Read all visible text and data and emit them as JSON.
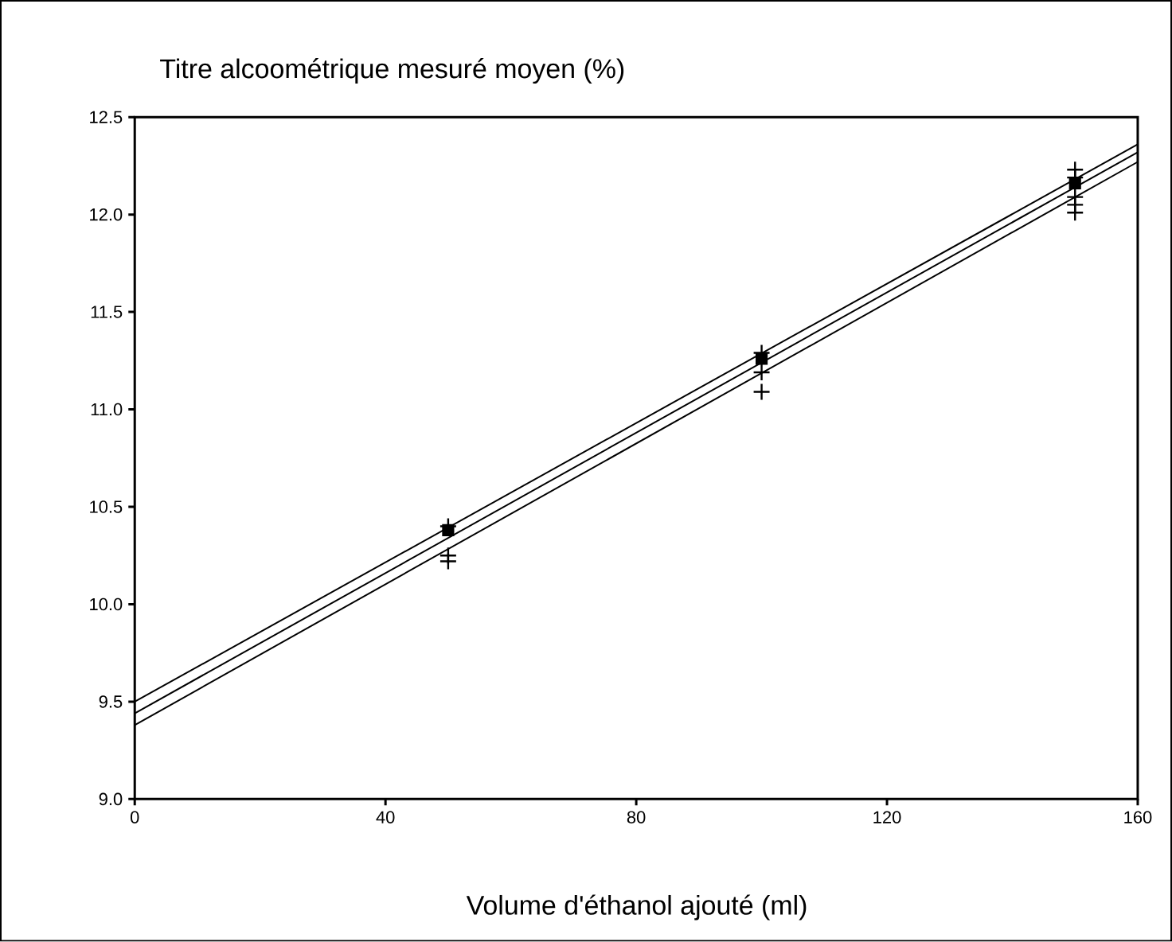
{
  "chart_data": {
    "type": "line",
    "ylabel": "Titre alcoométrique mesuré moyen (%)",
    "xlabel": "Volume d'éthanol ajouté (ml)",
    "xlim": [
      0,
      160
    ],
    "xticks": [
      0,
      40,
      80,
      120,
      160
    ],
    "ylim": [
      9,
      12.5
    ],
    "yticks": [
      {
        "value": 9,
        "label": "9.0"
      },
      {
        "value": 9.5,
        "label": "9.5"
      },
      {
        "value": 10,
        "label": "10.0"
      },
      {
        "value": 10.5,
        "label": "10.5"
      },
      {
        "value": 11,
        "label": "11.0"
      },
      {
        "value": 11.5,
        "label": "11.5"
      },
      {
        "value": 12,
        "label": "12.0"
      },
      {
        "value": 12.5,
        "label": "12.5"
      }
    ],
    "grid": false,
    "series": [
      {
        "color": "#000000",
        "marker": "none",
        "line_style": "solid",
        "x": [
          0,
          160
        ],
        "values": [
          9.5,
          12.36
        ]
      },
      {
        "color": "#000000",
        "marker": "none",
        "line_style": "solid",
        "x": [
          0,
          160
        ],
        "values": [
          9.44,
          12.32
        ]
      },
      {
        "color": "#000000",
        "marker": "none",
        "line_style": "solid",
        "x": [
          0,
          160
        ],
        "values": [
          9.38,
          12.27
        ]
      },
      {
        "type": "scatter",
        "color": "#000000",
        "marker": "cross",
        "x": [
          50,
          50,
          50,
          100,
          100,
          100,
          150,
          150,
          150,
          150,
          150
        ],
        "values": [
          10.4,
          10.25,
          10.22,
          11.29,
          11.19,
          11.09,
          12.23,
          12.19,
          12.09,
          12.05,
          12.01
        ]
      },
      {
        "type": "scatter",
        "color": "#000000",
        "marker": "square",
        "x": [
          50,
          100,
          150
        ],
        "values": [
          10.38,
          11.26,
          12.16
        ]
      }
    ]
  }
}
